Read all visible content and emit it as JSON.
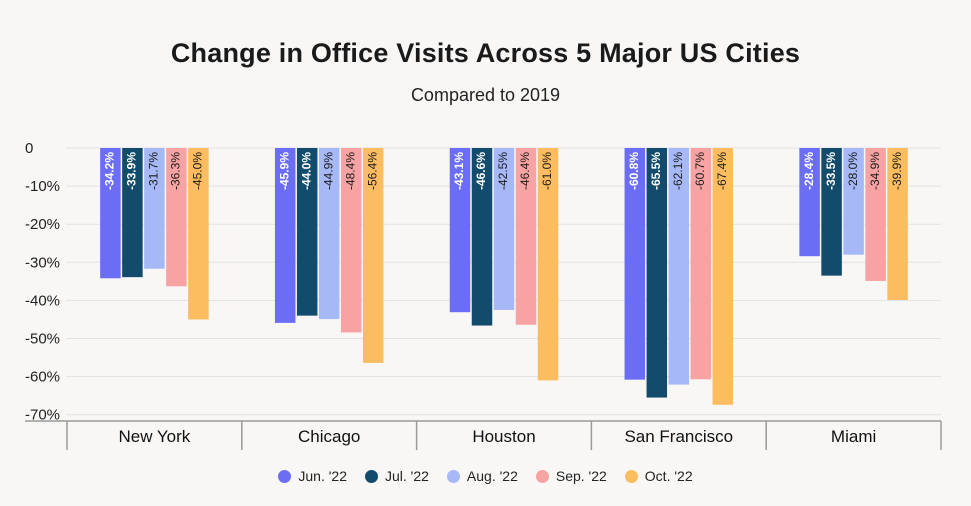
{
  "chart_data": {
    "type": "bar",
    "title": "Change in Office Visits Across 5 Major US Cities",
    "subtitle": "Compared to 2019",
    "xlabel": "",
    "ylabel": "",
    "categories": [
      "New York",
      "Chicago",
      "Houston",
      "San Francisco",
      "Miami"
    ],
    "series": [
      {
        "name": "Jun. '22",
        "color": "#6b6ef5",
        "values": [
          -34.2,
          -45.9,
          -43.1,
          -60.8,
          -28.4
        ],
        "labels": [
          "-34.2%",
          "-45.9%",
          "-43.1%",
          "-60.8%",
          "-28.4%"
        ]
      },
      {
        "name": "Jul. '22",
        "color": "#124b6b",
        "values": [
          -33.9,
          -44.0,
          -46.6,
          -65.5,
          -33.5
        ],
        "labels": [
          "-33.9%",
          "-44.0%",
          "-46.6%",
          "-65.5%",
          "-33.5%"
        ]
      },
      {
        "name": "Aug. '22",
        "color": "#a7b8f7",
        "values": [
          -31.7,
          -44.9,
          -42.5,
          -62.1,
          -28.0
        ],
        "labels": [
          "-31.7%",
          "-44.9%",
          "-42.5%",
          "-62.1%",
          "-28.0%"
        ]
      },
      {
        "name": "Sep. '22",
        "color": "#f7a3a3",
        "values": [
          -36.3,
          -48.4,
          -46.4,
          -60.7,
          -34.9
        ],
        "labels": [
          "-36.3%",
          "-48.4%",
          "-46.4%",
          "-60.7%",
          "-34.9%"
        ]
      },
      {
        "name": "Oct. '22",
        "color": "#fcbc60",
        "values": [
          -45.0,
          -56.4,
          -61.0,
          -67.4,
          -39.9
        ],
        "labels": [
          "-45.0%",
          "-56.4%",
          "-61.0%",
          "-67.4%",
          "-39.9%"
        ]
      }
    ],
    "ylim": [
      -72,
      0
    ],
    "yticks": [
      0,
      -10,
      -20,
      -30,
      -40,
      -50,
      -60,
      -70
    ],
    "ytick_labels": [
      "0",
      "-10%",
      "-20%",
      "-30%",
      "-40%",
      "-50%",
      "-60%",
      "-70%"
    ],
    "label_colors": [
      "#ffffff",
      "#ffffff",
      "#1a1a1a",
      "#1a1a1a",
      "#1a1a1a"
    ],
    "grid": true,
    "legend_position": "bottom"
  }
}
